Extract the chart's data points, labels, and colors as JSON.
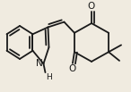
{
  "bg_color": "#f0ebe0",
  "bond_color": "#1a1a1a",
  "bond_lw": 1.3,
  "dbl_off": 0.022,
  "figsize": [
    1.46,
    1.03
  ],
  "dpi": 100,
  "xlim": [
    0,
    146
  ],
  "ylim": [
    0,
    103
  ]
}
